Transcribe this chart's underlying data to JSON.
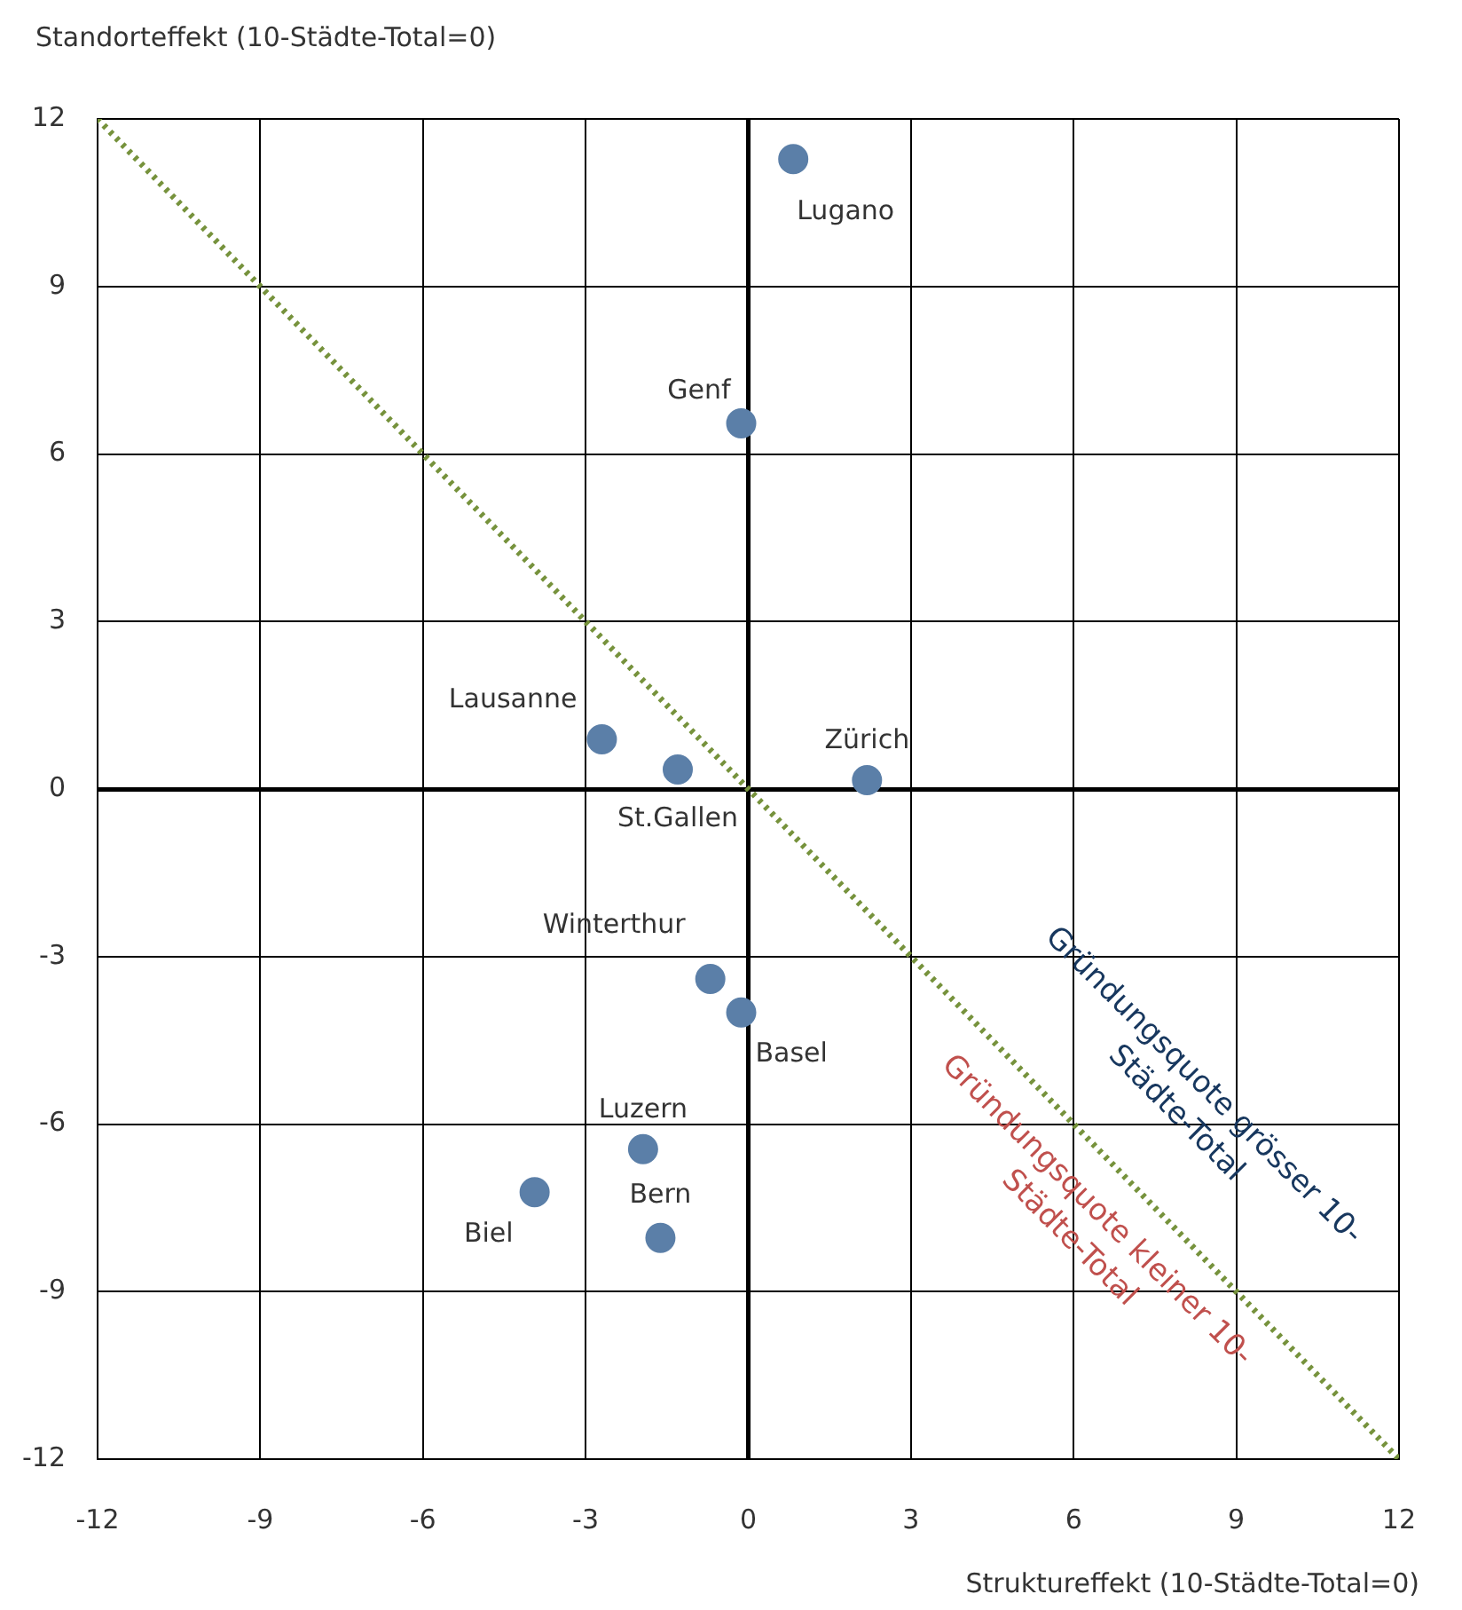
{
  "chart_data": {
    "type": "scatter",
    "xlabel": "Struktureffekt (10-Städte-Total=0)",
    "ylabel": "Standorteffekt (10-Städte-Total=0)",
    "xlim": [
      -12,
      12
    ],
    "ylim": [
      -12,
      12
    ],
    "xticks": [
      -12,
      -9,
      -6,
      -3,
      0,
      3,
      6,
      9,
      12
    ],
    "yticks": [
      -12,
      -9,
      -6,
      -3,
      0,
      3,
      6,
      9,
      12
    ],
    "grid": true,
    "marker": "circle",
    "series": [
      {
        "color": "#5b7fa8",
        "x": [
          0.83,
          -0.13,
          -2.7,
          -1.3,
          2.19,
          -0.7,
          -0.13,
          -1.94,
          -1.62,
          -3.94
        ],
        "values": [
          11.28,
          6.55,
          0.89,
          0.35,
          0.16,
          -3.4,
          -4.0,
          -6.45,
          -8.04,
          -7.22
        ]
      },
      {
        "type": "line",
        "color": "#76923c",
        "line_style": "dotted",
        "marker": "none",
        "x": [
          -12,
          12
        ],
        "values": [
          12,
          -12
        ]
      }
    ],
    "annotations": [
      {
        "text": "Lugano",
        "x": 0.83,
        "y": 11.28
      },
      {
        "text": "Genf",
        "x": -0.13,
        "y": 6.55
      },
      {
        "text": "Lausanne",
        "x": -2.7,
        "y": 0.89
      },
      {
        "text": "St.Gallen",
        "x": -1.3,
        "y": 0.35
      },
      {
        "text": "Zürich",
        "x": 2.19,
        "y": 0.16
      },
      {
        "text": "Winterthur",
        "x": -0.7,
        "y": -3.4
      },
      {
        "text": "Basel",
        "x": -0.13,
        "y": -4.0
      },
      {
        "text": "Luzern",
        "x": -1.94,
        "y": -6.45
      },
      {
        "text": "Bern",
        "x": -1.62,
        "y": -8.04
      },
      {
        "text": "Biel",
        "x": -3.94,
        "y": -7.22
      },
      "Gründungsquote grösser 10-Städte-Total",
      "Gründungsquote kleiner 10-Städte-Total"
    ]
  }
}
